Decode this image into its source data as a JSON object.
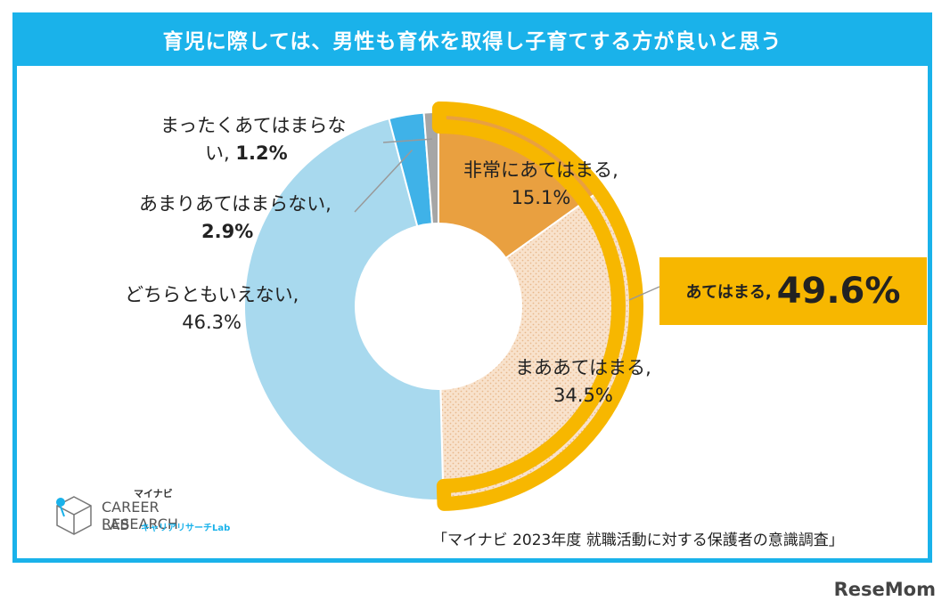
{
  "title": "育児に際しては、男性も育休を取得し子育てする方が良いと思う",
  "chart_data": {
    "type": "pie",
    "donut": true,
    "slices": [
      {
        "label": "非常にあてはまる,",
        "value": 15.1,
        "value_text": "15.1%",
        "color": "#e9a040"
      },
      {
        "label": "まああてはまる,",
        "value": 34.5,
        "value_text": "34.5%",
        "color": "#f6dcc3"
      },
      {
        "label": "どちらともいえない,",
        "value": 46.3,
        "value_text": "46.3%",
        "color": "#a8d9ee"
      },
      {
        "label": "あまりあてはまらない,",
        "value": 2.9,
        "value_text": "2.9%",
        "color": "#3fb2e8"
      },
      {
        "label": "まったくあてはまらない,",
        "value": 1.2,
        "value_text": "1.2%",
        "color": "#a6a6a6"
      }
    ],
    "highlight": {
      "label": "あてはまる,",
      "value": 49.6,
      "value_text": "49.6%",
      "color": "#f7b700"
    }
  },
  "labels": {
    "very": {
      "line1": "非常にあてはまる,",
      "line2": "15.1%"
    },
    "somewhat": {
      "line1": "まああてはまる,",
      "line2": "34.5%"
    },
    "neutral": {
      "line1": "どちらともいえない,",
      "line2": "46.3%"
    },
    "rarely_line1": "あまりあてはまらない,",
    "rarely_value": "2.9%",
    "never_line1": "まったくあてはまらな",
    "never_line2_prefix": "い,",
    "never_value": "1.2%"
  },
  "callout": {
    "label": "あてはまる,",
    "value": "49.6%"
  },
  "logo": {
    "small": "マイナビ",
    "line1": "CAREER RESEARCH",
    "line2": "LAB",
    "sub": "キャリアリサーチLab"
  },
  "source": "「マイナビ 2023年度 就職活動に対する保護者の意識調査」",
  "watermark": "ReseMom"
}
